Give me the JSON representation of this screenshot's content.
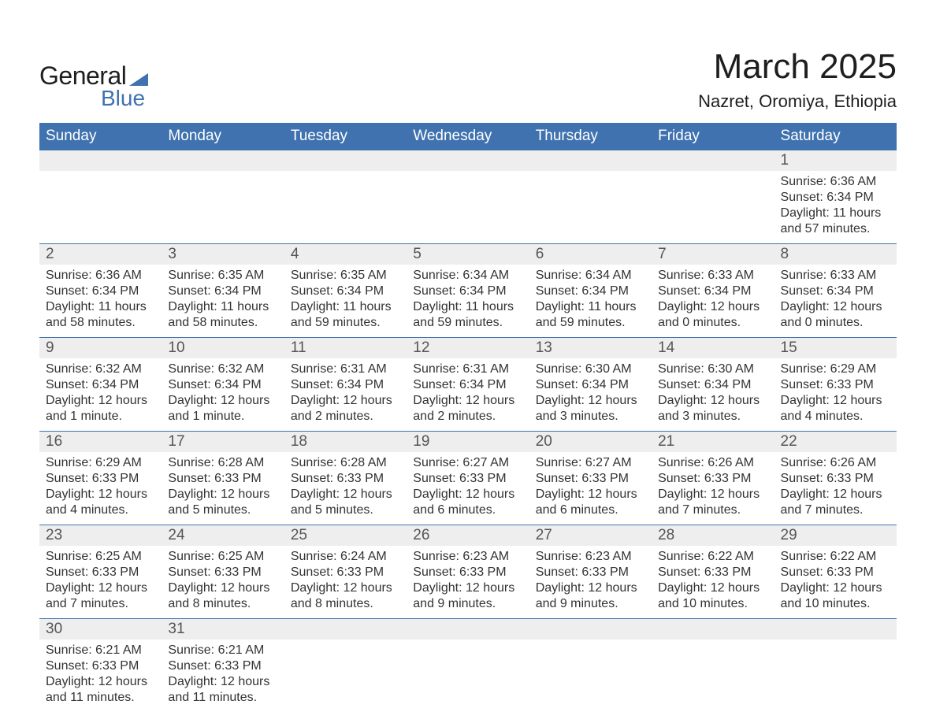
{
  "logo": {
    "text_general": "General",
    "text_blue": "Blue",
    "icon_color": "#3f72af"
  },
  "header": {
    "title": "March 2025",
    "location": "Nazret, Oromiya, Ethiopia",
    "title_fontsize": 44,
    "location_fontsize": 22
  },
  "calendar": {
    "header_bg": "#3f72af",
    "header_fg": "#ffffff",
    "row_border_color": "#3f72af",
    "daynum_bg": "#eeeeee",
    "daynum_fg": "#555555",
    "body_fg": "#333333",
    "font_family": "Arial",
    "columns": [
      "Sunday",
      "Monday",
      "Tuesday",
      "Wednesday",
      "Thursday",
      "Friday",
      "Saturday"
    ],
    "weeks": [
      {
        "days": [
          null,
          null,
          null,
          null,
          null,
          null,
          {
            "n": "1",
            "sunrise": "Sunrise: 6:36 AM",
            "sunset": "Sunset: 6:34 PM",
            "daylight1": "Daylight: 11 hours",
            "daylight2": "and 57 minutes."
          }
        ]
      },
      {
        "days": [
          {
            "n": "2",
            "sunrise": "Sunrise: 6:36 AM",
            "sunset": "Sunset: 6:34 PM",
            "daylight1": "Daylight: 11 hours",
            "daylight2": "and 58 minutes."
          },
          {
            "n": "3",
            "sunrise": "Sunrise: 6:35 AM",
            "sunset": "Sunset: 6:34 PM",
            "daylight1": "Daylight: 11 hours",
            "daylight2": "and 58 minutes."
          },
          {
            "n": "4",
            "sunrise": "Sunrise: 6:35 AM",
            "sunset": "Sunset: 6:34 PM",
            "daylight1": "Daylight: 11 hours",
            "daylight2": "and 59 minutes."
          },
          {
            "n": "5",
            "sunrise": "Sunrise: 6:34 AM",
            "sunset": "Sunset: 6:34 PM",
            "daylight1": "Daylight: 11 hours",
            "daylight2": "and 59 minutes."
          },
          {
            "n": "6",
            "sunrise": "Sunrise: 6:34 AM",
            "sunset": "Sunset: 6:34 PM",
            "daylight1": "Daylight: 11 hours",
            "daylight2": "and 59 minutes."
          },
          {
            "n": "7",
            "sunrise": "Sunrise: 6:33 AM",
            "sunset": "Sunset: 6:34 PM",
            "daylight1": "Daylight: 12 hours",
            "daylight2": "and 0 minutes."
          },
          {
            "n": "8",
            "sunrise": "Sunrise: 6:33 AM",
            "sunset": "Sunset: 6:34 PM",
            "daylight1": "Daylight: 12 hours",
            "daylight2": "and 0 minutes."
          }
        ]
      },
      {
        "days": [
          {
            "n": "9",
            "sunrise": "Sunrise: 6:32 AM",
            "sunset": "Sunset: 6:34 PM",
            "daylight1": "Daylight: 12 hours",
            "daylight2": "and 1 minute."
          },
          {
            "n": "10",
            "sunrise": "Sunrise: 6:32 AM",
            "sunset": "Sunset: 6:34 PM",
            "daylight1": "Daylight: 12 hours",
            "daylight2": "and 1 minute."
          },
          {
            "n": "11",
            "sunrise": "Sunrise: 6:31 AM",
            "sunset": "Sunset: 6:34 PM",
            "daylight1": "Daylight: 12 hours",
            "daylight2": "and 2 minutes."
          },
          {
            "n": "12",
            "sunrise": "Sunrise: 6:31 AM",
            "sunset": "Sunset: 6:34 PM",
            "daylight1": "Daylight: 12 hours",
            "daylight2": "and 2 minutes."
          },
          {
            "n": "13",
            "sunrise": "Sunrise: 6:30 AM",
            "sunset": "Sunset: 6:34 PM",
            "daylight1": "Daylight: 12 hours",
            "daylight2": "and 3 minutes."
          },
          {
            "n": "14",
            "sunrise": "Sunrise: 6:30 AM",
            "sunset": "Sunset: 6:34 PM",
            "daylight1": "Daylight: 12 hours",
            "daylight2": "and 3 minutes."
          },
          {
            "n": "15",
            "sunrise": "Sunrise: 6:29 AM",
            "sunset": "Sunset: 6:33 PM",
            "daylight1": "Daylight: 12 hours",
            "daylight2": "and 4 minutes."
          }
        ]
      },
      {
        "days": [
          {
            "n": "16",
            "sunrise": "Sunrise: 6:29 AM",
            "sunset": "Sunset: 6:33 PM",
            "daylight1": "Daylight: 12 hours",
            "daylight2": "and 4 minutes."
          },
          {
            "n": "17",
            "sunrise": "Sunrise: 6:28 AM",
            "sunset": "Sunset: 6:33 PM",
            "daylight1": "Daylight: 12 hours",
            "daylight2": "and 5 minutes."
          },
          {
            "n": "18",
            "sunrise": "Sunrise: 6:28 AM",
            "sunset": "Sunset: 6:33 PM",
            "daylight1": "Daylight: 12 hours",
            "daylight2": "and 5 minutes."
          },
          {
            "n": "19",
            "sunrise": "Sunrise: 6:27 AM",
            "sunset": "Sunset: 6:33 PM",
            "daylight1": "Daylight: 12 hours",
            "daylight2": "and 6 minutes."
          },
          {
            "n": "20",
            "sunrise": "Sunrise: 6:27 AM",
            "sunset": "Sunset: 6:33 PM",
            "daylight1": "Daylight: 12 hours",
            "daylight2": "and 6 minutes."
          },
          {
            "n": "21",
            "sunrise": "Sunrise: 6:26 AM",
            "sunset": "Sunset: 6:33 PM",
            "daylight1": "Daylight: 12 hours",
            "daylight2": "and 7 minutes."
          },
          {
            "n": "22",
            "sunrise": "Sunrise: 6:26 AM",
            "sunset": "Sunset: 6:33 PM",
            "daylight1": "Daylight: 12 hours",
            "daylight2": "and 7 minutes."
          }
        ]
      },
      {
        "days": [
          {
            "n": "23",
            "sunrise": "Sunrise: 6:25 AM",
            "sunset": "Sunset: 6:33 PM",
            "daylight1": "Daylight: 12 hours",
            "daylight2": "and 7 minutes."
          },
          {
            "n": "24",
            "sunrise": "Sunrise: 6:25 AM",
            "sunset": "Sunset: 6:33 PM",
            "daylight1": "Daylight: 12 hours",
            "daylight2": "and 8 minutes."
          },
          {
            "n": "25",
            "sunrise": "Sunrise: 6:24 AM",
            "sunset": "Sunset: 6:33 PM",
            "daylight1": "Daylight: 12 hours",
            "daylight2": "and 8 minutes."
          },
          {
            "n": "26",
            "sunrise": "Sunrise: 6:23 AM",
            "sunset": "Sunset: 6:33 PM",
            "daylight1": "Daylight: 12 hours",
            "daylight2": "and 9 minutes."
          },
          {
            "n": "27",
            "sunrise": "Sunrise: 6:23 AM",
            "sunset": "Sunset: 6:33 PM",
            "daylight1": "Daylight: 12 hours",
            "daylight2": "and 9 minutes."
          },
          {
            "n": "28",
            "sunrise": "Sunrise: 6:22 AM",
            "sunset": "Sunset: 6:33 PM",
            "daylight1": "Daylight: 12 hours",
            "daylight2": "and 10 minutes."
          },
          {
            "n": "29",
            "sunrise": "Sunrise: 6:22 AM",
            "sunset": "Sunset: 6:33 PM",
            "daylight1": "Daylight: 12 hours",
            "daylight2": "and 10 minutes."
          }
        ]
      },
      {
        "days": [
          {
            "n": "30",
            "sunrise": "Sunrise: 6:21 AM",
            "sunset": "Sunset: 6:33 PM",
            "daylight1": "Daylight: 12 hours",
            "daylight2": "and 11 minutes."
          },
          {
            "n": "31",
            "sunrise": "Sunrise: 6:21 AM",
            "sunset": "Sunset: 6:33 PM",
            "daylight1": "Daylight: 12 hours",
            "daylight2": "and 11 minutes."
          },
          null,
          null,
          null,
          null,
          null
        ]
      }
    ]
  }
}
